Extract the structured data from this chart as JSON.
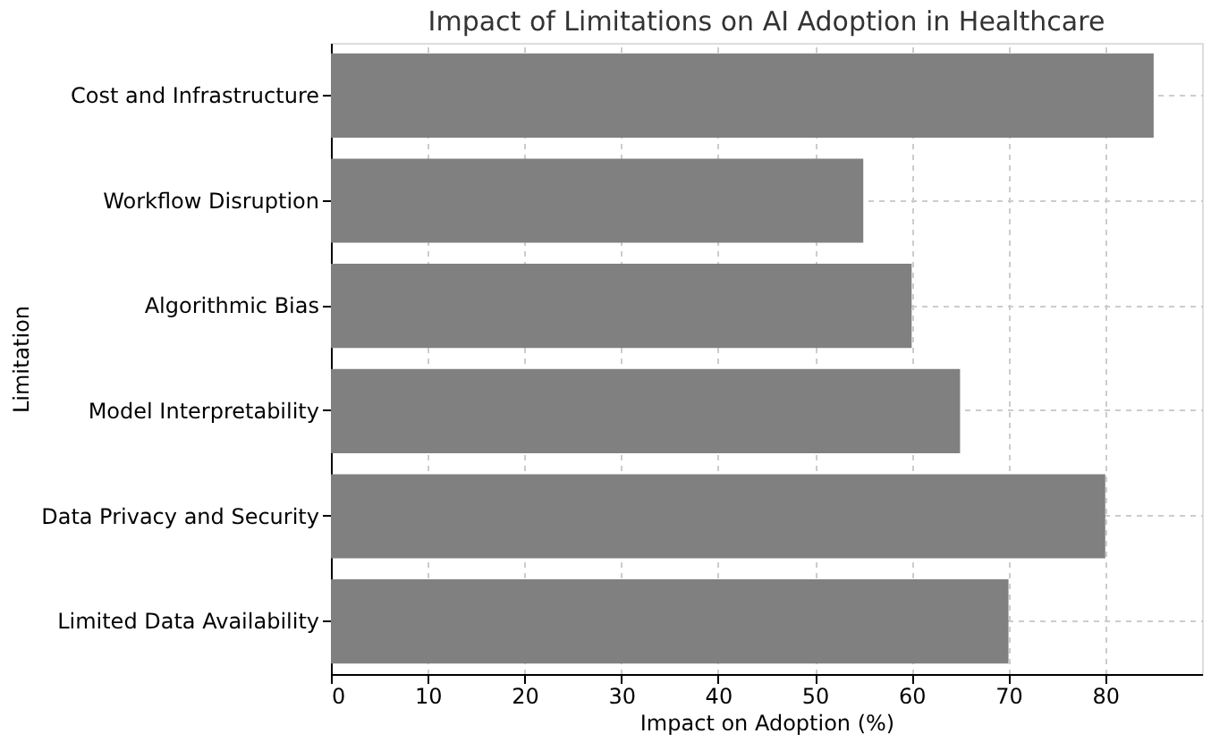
{
  "chart_data": {
    "type": "bar",
    "orientation": "horizontal",
    "title": "Impact of Limitations on AI Adoption in Healthcare",
    "xlabel": "Impact on Adoption (%)",
    "ylabel": "Limitation",
    "categories": [
      "Cost and Infrastructure",
      "Workflow Disruption",
      "Algorithmic Bias",
      "Model Interpretability",
      "Data Privacy and Security",
      "Limited Data Availability"
    ],
    "values": [
      85,
      55,
      60,
      65,
      80,
      70
    ],
    "color": "#808080",
    "xlim": [
      0,
      90
    ],
    "xticks": [
      0,
      10,
      20,
      30,
      40,
      50,
      60,
      70,
      80
    ],
    "grid": true
  }
}
